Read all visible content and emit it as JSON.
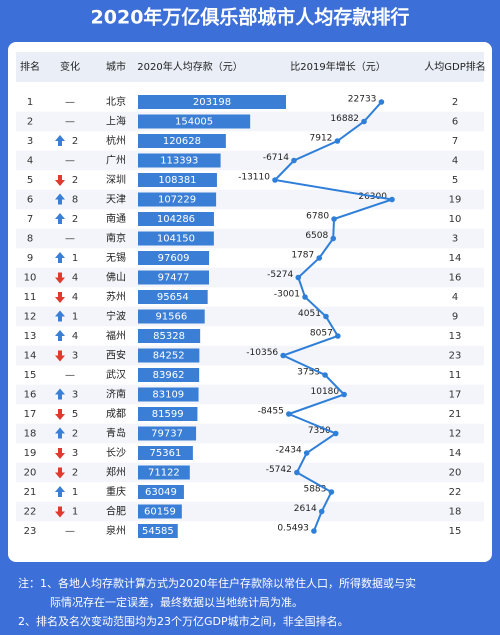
{
  "chart_data": {
    "type": "ranking",
    "title": "2020年万亿俱乐部城市人均存款排行",
    "columns": [
      "排名",
      "变化",
      "城市",
      "2020年人均存款（元）",
      "比2019年增长（元）",
      "人均GDP排名"
    ],
    "ranks": [
      1,
      2,
      3,
      4,
      5,
      6,
      7,
      8,
      9,
      10,
      11,
      12,
      13,
      14,
      15,
      16,
      17,
      18,
      19,
      20,
      21,
      22,
      23
    ],
    "change_dir": [
      "none",
      "none",
      "up",
      "none",
      "down",
      "up",
      "up",
      "none",
      "up",
      "down",
      "down",
      "up",
      "up",
      "down",
      "none",
      "up",
      "down",
      "up",
      "down",
      "down",
      "up",
      "down",
      "none"
    ],
    "change_labels": [
      "—",
      "—",
      "2",
      "—",
      "2",
      "8",
      "2",
      "—",
      "1",
      "4",
      "4",
      "1",
      "4",
      "3",
      "—",
      "3",
      "5",
      "2",
      "3",
      "2",
      "1",
      "1",
      "—"
    ],
    "cities": [
      "北京",
      "上海",
      "杭州",
      "广州",
      "深圳",
      "天津",
      "南通",
      "南京",
      "无锡",
      "佛山",
      "苏州",
      "宁波",
      "福州",
      "西安",
      "武汉",
      "济南",
      "成都",
      "青岛",
      "长沙",
      "郑州",
      "重庆",
      "合肥",
      "泉州"
    ],
    "deposits": [
      203198,
      154005,
      120628,
      113393,
      108381,
      107229,
      104286,
      104150,
      97609,
      97477,
      95654,
      91566,
      85328,
      84252,
      83962,
      83109,
      81599,
      79737,
      75361,
      71122,
      63049,
      60159,
      54585
    ],
    "growth": [
      22733,
      16882,
      7912,
      -6714,
      -13110,
      26300,
      6780,
      6508,
      1787,
      -5274,
      -3001,
      4051,
      8057,
      -10356,
      3753,
      10180,
      -8455,
      7350,
      -2434,
      -5742,
      5883,
      2614,
      0.5493
    ],
    "gdp_rank": [
      2,
      6,
      7,
      4,
      5,
      19,
      10,
      3,
      14,
      16,
      4,
      9,
      13,
      23,
      11,
      17,
      21,
      12,
      14,
      20,
      22,
      18,
      15
    ],
    "bar_color": "#3a7fd5",
    "line_color": "#2f7fd8",
    "notes": [
      "注：1、各地人均存款计算方式为2020年住户存款除以常住人口，所得数据或与实",
      "际情况存在一定误差，最终数据以当地统计局为准。",
      "2、排名及名次变动范围均为23个万亿GDP城市之间，非全国排名。"
    ]
  }
}
